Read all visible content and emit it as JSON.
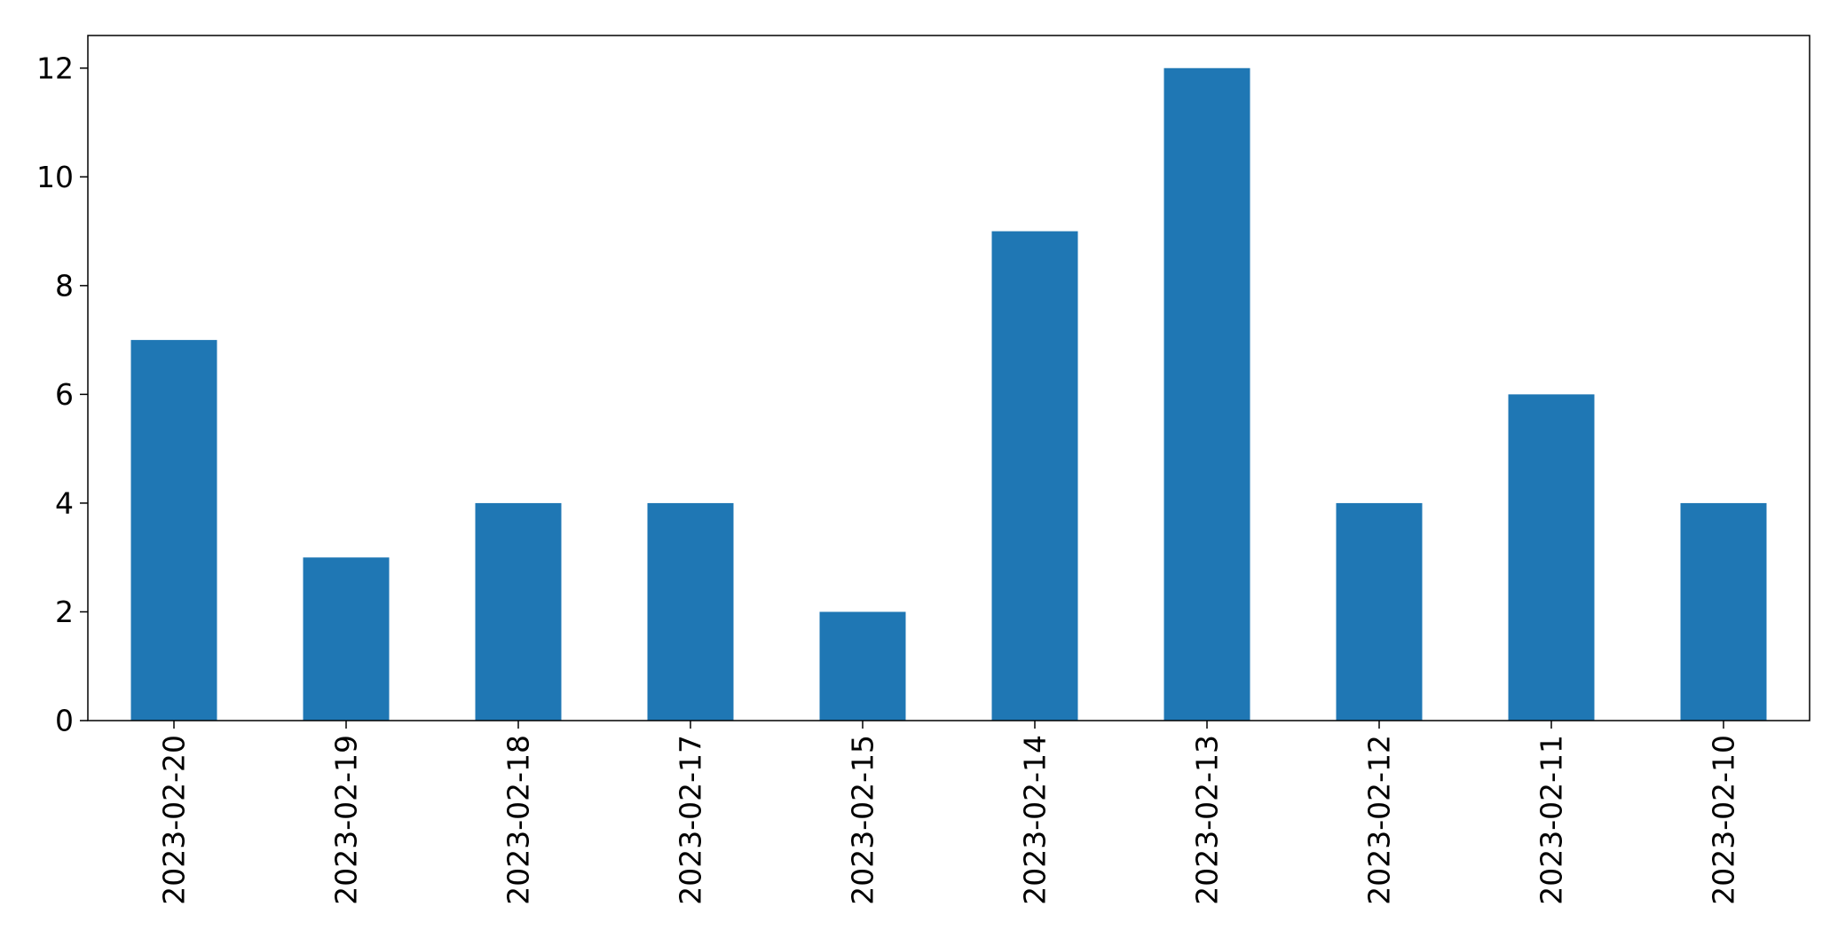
{
  "chart_data": {
    "type": "bar",
    "categories": [
      "2023-02-20",
      "2023-02-19",
      "2023-02-18",
      "2023-02-17",
      "2023-02-15",
      "2023-02-14",
      "2023-02-13",
      "2023-02-12",
      "2023-02-11",
      "2023-02-10"
    ],
    "values": [
      7,
      3,
      4,
      4,
      2,
      9,
      12,
      4,
      6,
      4
    ],
    "title": "",
    "xlabel": "",
    "ylabel": "",
    "ylim": [
      0,
      12.6
    ],
    "yticks": [
      0,
      2,
      4,
      6,
      8,
      10,
      12
    ],
    "grid": false,
    "legend": "none",
    "bar_color": "#1f77b4"
  }
}
